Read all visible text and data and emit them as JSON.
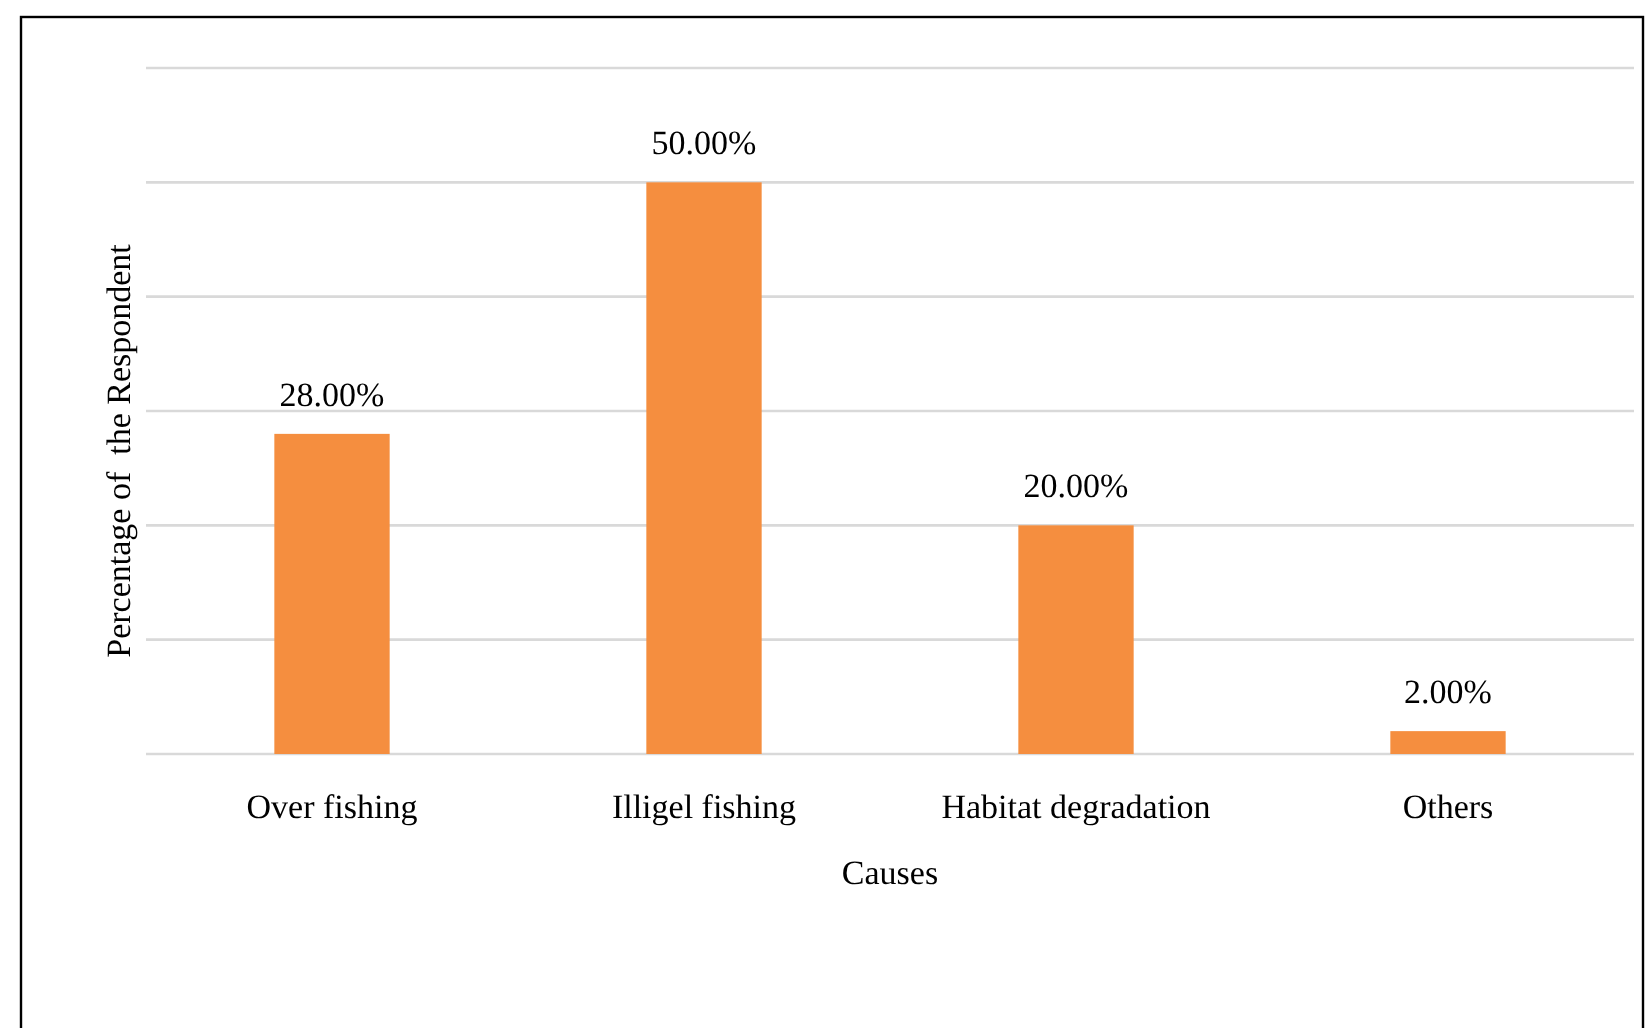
{
  "chart_data": {
    "type": "bar",
    "xlabel": "Causes",
    "ylabel": "Percentage of  the Respondent",
    "categories": [
      "Over fishing",
      "Illigel fishing",
      "Habitat degradation",
      "Others"
    ],
    "values": [
      28,
      50,
      20,
      2
    ],
    "color": "#f58e3f",
    "value_labels": [
      "28.00%",
      "50.00%",
      "20.00%",
      "2.00%"
    ],
    "ylim": [
      0,
      60
    ],
    "yticks": [
      {
        "value": 0,
        "label": null
      },
      {
        "value": 10,
        "label": null
      },
      {
        "value": 20,
        "label": null
      },
      {
        "value": 30,
        "label": null
      },
      {
        "value": 40,
        "label": null
      },
      {
        "value": 50,
        "label": null
      },
      {
        "value": 60,
        "label": null
      }
    ],
    "grid": "y",
    "tick_labels": "x"
  }
}
